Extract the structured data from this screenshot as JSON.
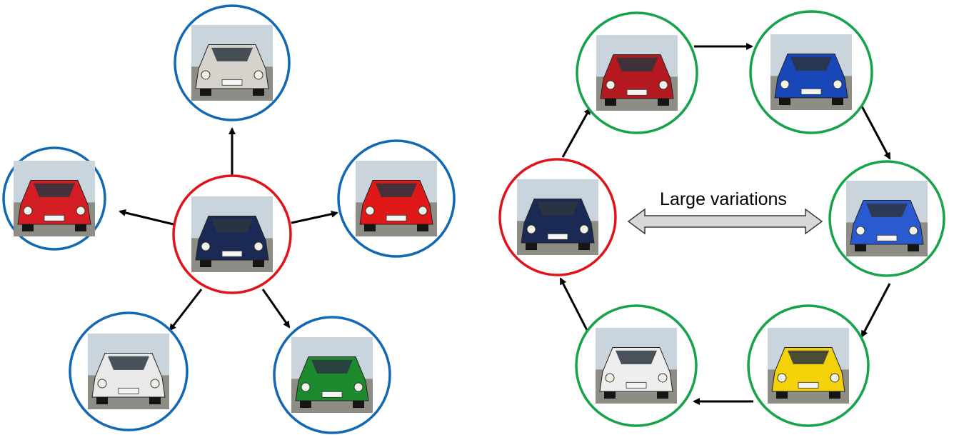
{
  "colors": {
    "anchor_ring": "#e0131a",
    "dissimilar_ring": "#1368b3",
    "similar_ring": "#16a34a",
    "arrow": "#000000",
    "double_arrow_fill": "#d8d8d8",
    "double_arrow_stroke": "#3a3a3a"
  },
  "left_diagram": {
    "center": {
      "name": "mercedes-sedan",
      "body": "#1b2a55"
    },
    "neighbors": [
      {
        "name": "ferrari-white",
        "body": "#d6d3cc"
      },
      {
        "name": "ferrari-red",
        "body": "#e01818"
      },
      {
        "name": "rally-green",
        "body": "#1d8a2e"
      },
      {
        "name": "saab-white",
        "body": "#e9e9e9"
      },
      {
        "name": "citroen-rally",
        "body": "#d51e24"
      }
    ]
  },
  "right_diagram": {
    "anchor": {
      "name": "mercedes-sedan",
      "body": "#1b2a55"
    },
    "cycle": [
      {
        "name": "saab-rally-red",
        "body": "#b3191e"
      },
      {
        "name": "race-car-blue",
        "body": "#1848b8"
      },
      {
        "name": "nissan-blue",
        "body": "#2a5ad0"
      },
      {
        "name": "lotus-yellow",
        "body": "#f4d20a"
      },
      {
        "name": "land-rover-white",
        "body": "#eeeeee"
      }
    ],
    "variation_label": "Large variations"
  }
}
